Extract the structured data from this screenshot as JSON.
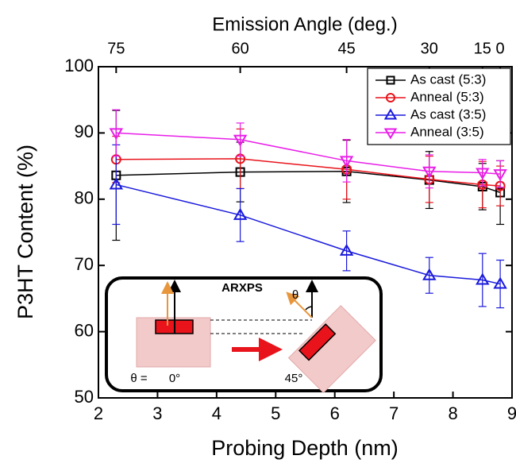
{
  "chart_data": {
    "type": "line",
    "x2label": "Emission Angle (deg.)",
    "xlabel": "Probing Depth (nm)",
    "ylabel": "P3HT Content (%)",
    "x": [
      2.3,
      4.4,
      6.2,
      7.6,
      8.5,
      8.8
    ],
    "xlim": [
      2,
      9
    ],
    "xticks": [
      2,
      3,
      4,
      5,
      6,
      7,
      8,
      9
    ],
    "x2ticks": [
      {
        "value": 2.3,
        "label": "75"
      },
      {
        "value": 4.4,
        "label": "60"
      },
      {
        "value": 6.2,
        "label": "45"
      },
      {
        "value": 7.6,
        "label": "30"
      },
      {
        "value": 8.5,
        "label": "15"
      },
      {
        "value": 8.8,
        "label": "0"
      }
    ],
    "ylim": [
      50,
      100
    ],
    "yticks": [
      50,
      60,
      70,
      80,
      90,
      100
    ],
    "legend": "top-right",
    "series": [
      {
        "name": "As cast (5:3)",
        "color": "#000000",
        "marker": "square",
        "values": [
          83.6,
          84.1,
          84.2,
          82.9,
          81.9,
          81.0
        ],
        "errors": [
          9.8,
          4.5,
          4.7,
          4.3,
          3.5,
          4.8
        ]
      },
      {
        "name": "Anneal (5:3)",
        "color": "#e8131b",
        "marker": "circle",
        "values": [
          86.0,
          86.1,
          84.5,
          83.0,
          82.2,
          82.0
        ],
        "errors": [
          3.5,
          4.5,
          4.5,
          3.5,
          3.5,
          3.0
        ]
      },
      {
        "name": "As cast (3:5)",
        "color": "#1a1adc",
        "marker": "triangle-up",
        "values": [
          82.2,
          77.6,
          72.2,
          68.5,
          67.8,
          67.2
        ],
        "errors": [
          6.0,
          4.0,
          3.0,
          2.7,
          4.0,
          3.6
        ]
      },
      {
        "name": "Anneal (3:5)",
        "color": "#e81ee8",
        "marker": "triangle-down",
        "values": [
          90.0,
          89.0,
          85.8,
          84.2,
          84.0,
          83.8
        ],
        "errors": [
          3.5,
          2.5,
          3.2,
          2.5,
          2.0,
          2.0
        ]
      }
    ],
    "inset": {
      "title": "ARXPS",
      "theta": "θ",
      "theta_eq": "θ =",
      "angle_0": "0°",
      "angle_45": "45°"
    }
  }
}
